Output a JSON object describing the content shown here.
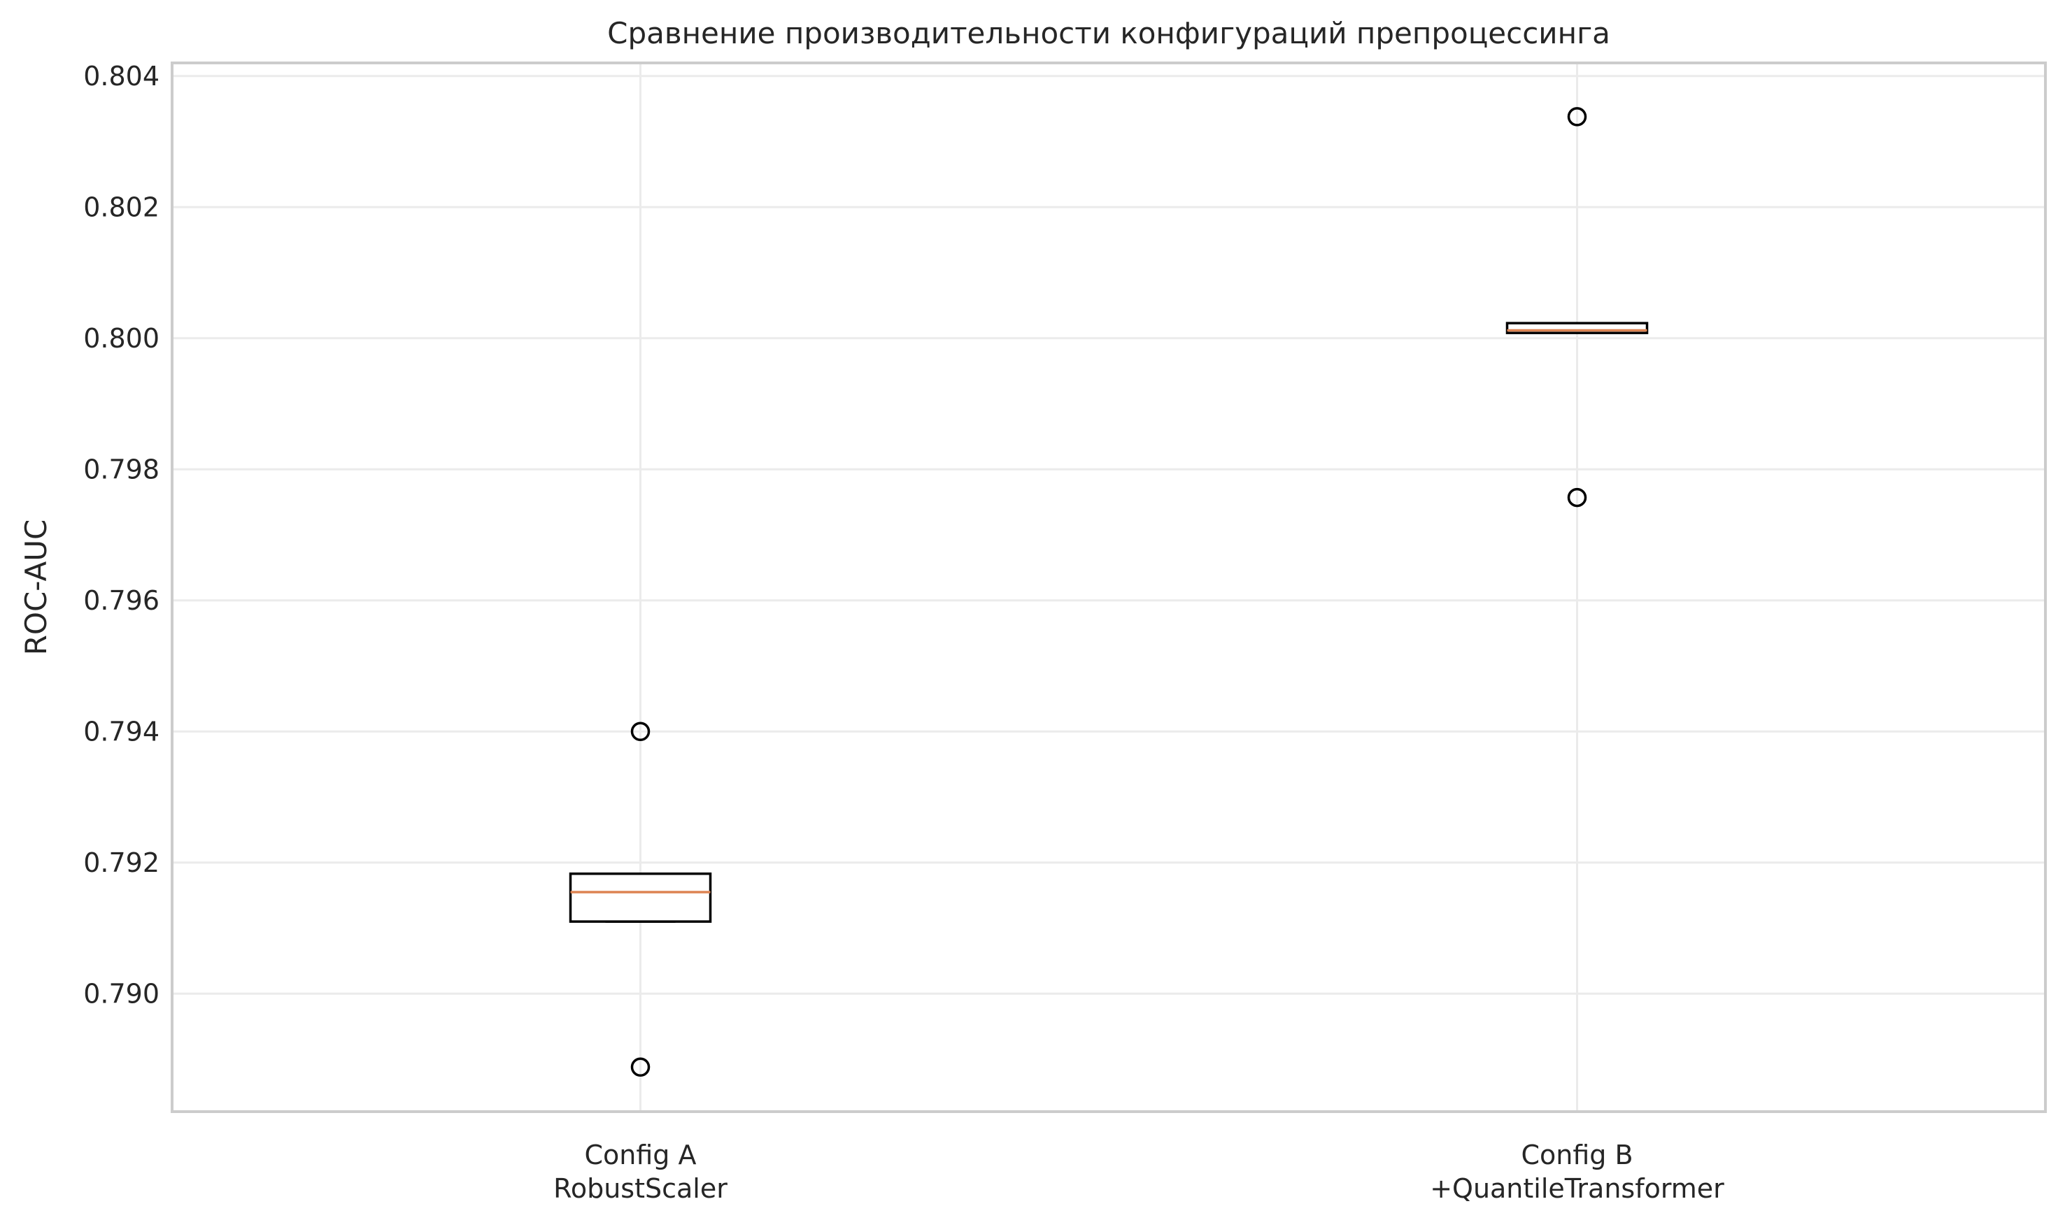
{
  "chart_data": {
    "type": "box",
    "title": "Сравнение производительности конфигураций препроцессинга",
    "ylabel": "ROC-AUC",
    "xlabel": "",
    "ylim": [
      0.7882,
      0.8042
    ],
    "yticks": [
      0.79,
      0.792,
      0.794,
      0.796,
      0.798,
      0.8,
      0.802,
      0.804
    ],
    "ytick_labels": [
      "0.790",
      "0.792",
      "0.794",
      "0.796",
      "0.798",
      "0.800",
      "0.802",
      "0.804"
    ],
    "grid": true,
    "categories": [
      [
        "Config A",
        "RobustScaler"
      ],
      [
        "Config B",
        "+QuantileTransformer"
      ]
    ],
    "boxes": [
      {
        "q1": 0.7911,
        "median": 0.79155,
        "q3": 0.79183,
        "whisker_low": 0.7911,
        "whisker_high": 0.79183,
        "fliers": [
          0.794,
          0.78888
        ]
      },
      {
        "q1": 0.80008,
        "median": 0.80012,
        "q3": 0.80023,
        "whisker_low": 0.80008,
        "whisker_high": 0.80023,
        "fliers": [
          0.80338,
          0.79757
        ]
      }
    ],
    "colors": {
      "median": "#dd8452",
      "box": "#000000",
      "grid": "#ebebeb",
      "frame": "#cccccc"
    }
  }
}
